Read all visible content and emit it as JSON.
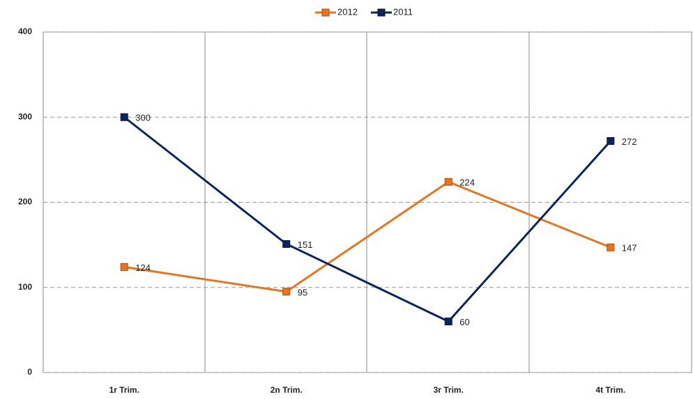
{
  "chart_data": {
    "type": "line",
    "categories": [
      "1r Trim.",
      "2n Trim.",
      "3r Trim.",
      "4t Trim."
    ],
    "series": [
      {
        "name": "2012",
        "color": "#e8741e",
        "values": [
          124,
          95,
          224,
          147
        ]
      },
      {
        "name": "2011",
        "color": "#0b2460",
        "values": [
          300,
          151,
          60,
          272
        ]
      }
    ],
    "ylim": [
      0,
      400
    ],
    "yticks": [
      0,
      100,
      200,
      300,
      400
    ],
    "grid": true,
    "legend": "top"
  }
}
